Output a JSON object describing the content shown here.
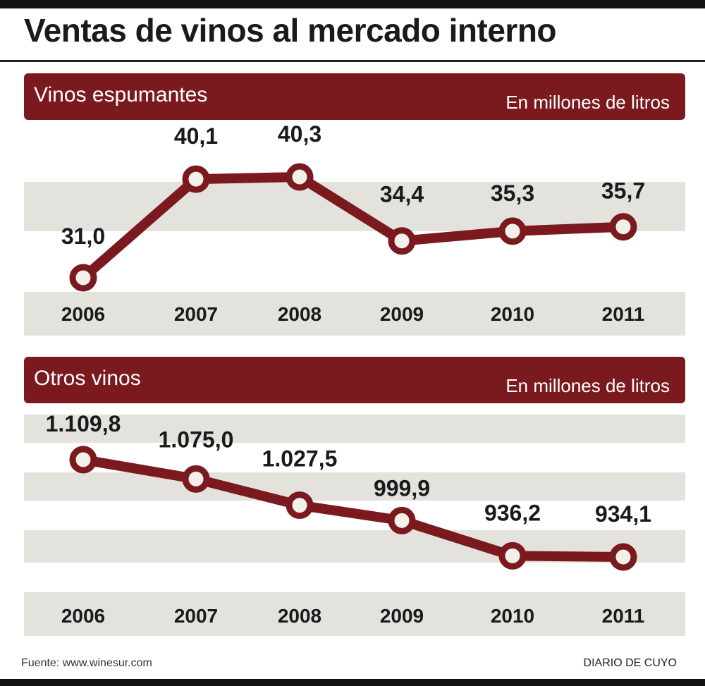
{
  "title": "Ventas de vinos al mercado interno",
  "source": "Fuente: www.winesur.com",
  "publisher": "DIARIO DE CUYO",
  "colors": {
    "accent": "#7a1a1f",
    "band": "#e4e2dc",
    "marker_fill": "#f3efe9"
  },
  "chart_data": [
    {
      "type": "line",
      "title": "Vinos espumantes",
      "unit_label": "En millones de litros",
      "categories": [
        "2006",
        "2007",
        "2008",
        "2009",
        "2010",
        "2011"
      ],
      "values": [
        31.0,
        40.1,
        40.3,
        34.4,
        35.3,
        35.7
      ],
      "value_labels": [
        "31,0",
        "40,1",
        "40,3",
        "34,4",
        "35,3",
        "35,7"
      ]
    },
    {
      "type": "line",
      "title": "Otros vinos",
      "unit_label": "En millones de litros",
      "categories": [
        "2006",
        "2007",
        "2008",
        "2009",
        "2010",
        "2011"
      ],
      "values": [
        1109.8,
        1075.0,
        1027.5,
        999.9,
        936.2,
        934.1
      ],
      "value_labels": [
        "1.109,8",
        "1.075,0",
        "1.027,5",
        "999,9",
        "936,2",
        "934,1"
      ]
    }
  ]
}
